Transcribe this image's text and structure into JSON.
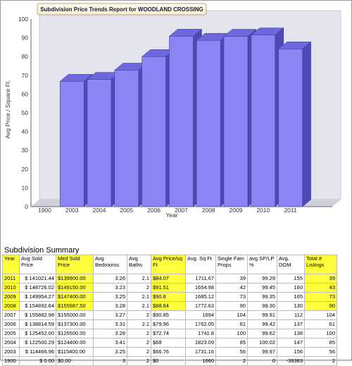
{
  "chart_data": {
    "type": "bar",
    "title": "Subdivision Price Trends Report for WOODLAND CROSSING",
    "xlabel": "Year",
    "ylabel": "Avg Price / Square Ft.",
    "ylim": [
      0,
      100
    ],
    "yticks": [
      0,
      10,
      20,
      30,
      40,
      50,
      60,
      70,
      80,
      90,
      100
    ],
    "categories": [
      "1900",
      "2003",
      "2004",
      "2005",
      "2006",
      "2007",
      "2008",
      "2009",
      "2010",
      "2011"
    ],
    "values": [
      0,
      66.76,
      67.81,
      72.74,
      79.96,
      90.85,
      88.64,
      90.8,
      91.51,
      84.07
    ],
    "bar_color": "#8a84f4",
    "grid": false
  },
  "summary": {
    "title": "Subdivision Summary",
    "highlight_color": "#ffff3c",
    "headers": [
      "Year",
      "Avg Sold Price",
      "Med Sold Price",
      "Avg Bedrooms",
      "Avg Baths",
      "Avg Price/sq Ft",
      "Avg. Sq Ft",
      "Single Fam Props",
      "avg SP/LP %",
      "Avg. DOM",
      "Total # Listings"
    ],
    "rows": [
      [
        "2011",
        "$ 141021.44",
        "$139900.00",
        "3.26",
        "2.1",
        "$84.07",
        "1711.67",
        "39",
        "99.29",
        "155",
        "39"
      ],
      [
        "2010",
        "$ 148726.02",
        "$149150.00",
        "3.23",
        "2",
        "$91.51",
        "1654.98",
        "42",
        "99.45",
        "160",
        "43"
      ],
      [
        "2009",
        "$ 149954.27",
        "$147400.00",
        "3.25",
        "2.1",
        "$90.8",
        "1685.12",
        "73",
        "99.35",
        "165",
        "73"
      ],
      [
        "2008",
        "$ 154892.64",
        "$155987.50",
        "3.28",
        "2.1",
        "$88.64",
        "1772.63",
        "90",
        "99.30",
        "130",
        "90"
      ],
      [
        "2007",
        "$ 155882.98",
        "$155000.00",
        "3.27",
        "2",
        "$90.85",
        "1694",
        "104",
        "99.91",
        "112",
        "104"
      ],
      [
        "2006",
        "$ 138814.59",
        "$137300.00",
        "3.31",
        "2.1",
        "$79.96",
        "1762.05",
        "61",
        "99.42",
        "137",
        "61"
      ],
      [
        "2005",
        "$ 125452.00",
        "$125500.00",
        "3.28",
        "2",
        "$72.74",
        "1741.8",
        "100",
        "99.62",
        "138",
        "100"
      ],
      [
        "2004",
        "$ 122500.29",
        "$124400.00",
        "3.41",
        "2",
        "$68",
        "1823.09",
        "85",
        "100.02",
        "147",
        "85"
      ],
      [
        "2003",
        "$ 114466.96",
        "$115400.00",
        "3.25",
        "2",
        "$66.76",
        "1731.16",
        "56",
        "99.97",
        "156",
        "56"
      ],
      [
        "1900",
        "$ 0.00",
        "$0.00",
        "3",
        "2",
        "$0",
        "1660",
        "2",
        "0",
        "-39383",
        "2"
      ]
    ]
  }
}
